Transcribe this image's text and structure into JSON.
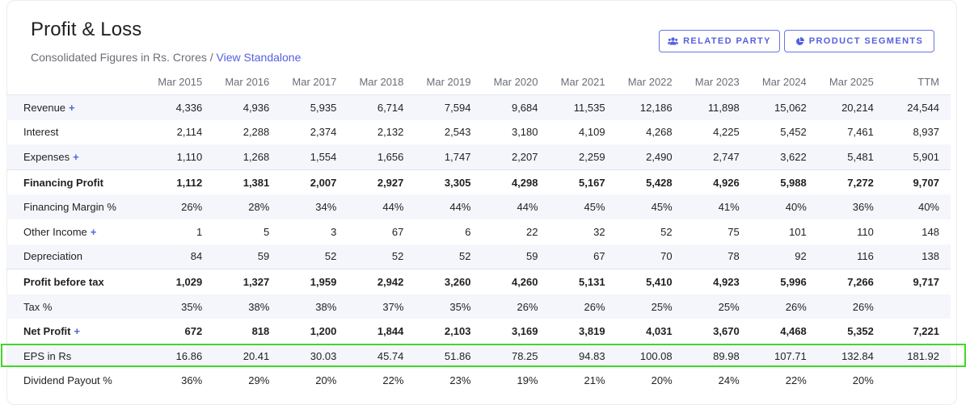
{
  "header": {
    "title": "Profit & Loss",
    "subtitle_prefix": "Consolidated Figures in Rs. Crores / ",
    "subtitle_link": "View Standalone"
  },
  "buttons": {
    "related_party": {
      "label": "RELATED PARTY",
      "icon": "users-icon"
    },
    "product_segments": {
      "label": "PRODUCT SEGMENTS",
      "icon": "pie-chart-icon"
    }
  },
  "table": {
    "columns": [
      "Mar 2015",
      "Mar 2016",
      "Mar 2017",
      "Mar 2018",
      "Mar 2019",
      "Mar 2020",
      "Mar 2021",
      "Mar 2022",
      "Mar 2023",
      "Mar 2024",
      "Mar 2025",
      "TTM"
    ],
    "rows": [
      {
        "label": "Revenue",
        "expandable": true,
        "bold": false,
        "stripe": true,
        "values": [
          "4,336",
          "4,936",
          "5,935",
          "6,714",
          "7,594",
          "9,684",
          "11,535",
          "12,186",
          "11,898",
          "15,062",
          "20,214",
          "24,544"
        ]
      },
      {
        "label": "Interest",
        "expandable": false,
        "bold": false,
        "stripe": false,
        "values": [
          "2,114",
          "2,288",
          "2,374",
          "2,132",
          "2,543",
          "3,180",
          "4,109",
          "4,268",
          "4,225",
          "5,452",
          "7,461",
          "8,937"
        ]
      },
      {
        "label": "Expenses",
        "expandable": true,
        "bold": false,
        "stripe": true,
        "values": [
          "1,110",
          "1,268",
          "1,554",
          "1,656",
          "1,747",
          "2,207",
          "2,259",
          "2,490",
          "2,747",
          "3,622",
          "5,481",
          "5,901"
        ]
      },
      {
        "label": "Financing Profit",
        "expandable": false,
        "bold": true,
        "stripe": false,
        "values": [
          "1,112",
          "1,381",
          "2,007",
          "2,927",
          "3,305",
          "4,298",
          "5,167",
          "5,428",
          "4,926",
          "5,988",
          "7,272",
          "9,707"
        ]
      },
      {
        "label": "Financing Margin %",
        "expandable": false,
        "bold": false,
        "stripe": true,
        "values": [
          "26%",
          "28%",
          "34%",
          "44%",
          "44%",
          "44%",
          "45%",
          "45%",
          "41%",
          "40%",
          "36%",
          "40%"
        ]
      },
      {
        "label": "Other Income",
        "expandable": true,
        "bold": false,
        "stripe": false,
        "values": [
          "1",
          "5",
          "3",
          "67",
          "6",
          "22",
          "32",
          "52",
          "75",
          "101",
          "110",
          "148"
        ]
      },
      {
        "label": "Depreciation",
        "expandable": false,
        "bold": false,
        "stripe": true,
        "values": [
          "84",
          "59",
          "52",
          "52",
          "52",
          "59",
          "67",
          "70",
          "78",
          "92",
          "116",
          "138"
        ]
      },
      {
        "label": "Profit before tax",
        "expandable": false,
        "bold": true,
        "stripe": false,
        "values": [
          "1,029",
          "1,327",
          "1,959",
          "2,942",
          "3,260",
          "4,260",
          "5,131",
          "5,410",
          "4,923",
          "5,996",
          "7,266",
          "9,717"
        ]
      },
      {
        "label": "Tax %",
        "expandable": false,
        "bold": false,
        "stripe": true,
        "values": [
          "35%",
          "38%",
          "38%",
          "37%",
          "35%",
          "26%",
          "26%",
          "25%",
          "25%",
          "26%",
          "26%",
          ""
        ]
      },
      {
        "label": "Net Profit",
        "expandable": true,
        "bold": true,
        "stripe": false,
        "values": [
          "672",
          "818",
          "1,200",
          "1,844",
          "2,103",
          "3,169",
          "3,819",
          "4,031",
          "3,670",
          "4,468",
          "5,352",
          "7,221"
        ]
      },
      {
        "label": "EPS in Rs",
        "expandable": false,
        "bold": false,
        "stripe": true,
        "values": [
          "16.86",
          "20.41",
          "30.03",
          "45.74",
          "51.86",
          "78.25",
          "94.83",
          "100.08",
          "89.98",
          "107.71",
          "132.84",
          "181.92"
        ]
      },
      {
        "label": "Dividend Payout %",
        "expandable": false,
        "bold": false,
        "stripe": false,
        "values": [
          "36%",
          "29%",
          "20%",
          "22%",
          "23%",
          "19%",
          "21%",
          "20%",
          "24%",
          "22%",
          "20%",
          ""
        ]
      }
    ]
  },
  "highlight_row": "EPS in Rs",
  "colors": {
    "accent": "#5560dd",
    "highlight": "#43d62a",
    "stripe": "#f5f6fb"
  }
}
